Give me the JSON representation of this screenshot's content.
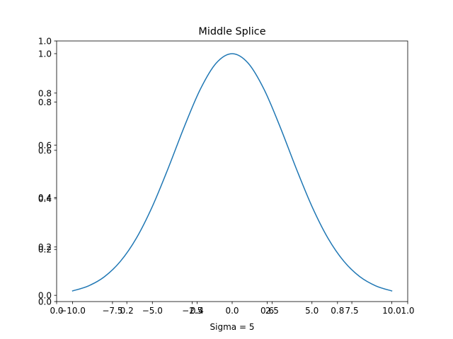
{
  "chart_data": {
    "type": "line",
    "title": "Middle Splice",
    "xlabel": "Sigma = 5",
    "ylabel": "",
    "grid": false,
    "series_color": "#1f77b4",
    "outer_axes": {
      "xlim": [
        0.0,
        1.0
      ],
      "ylim": [
        0.0,
        1.0
      ],
      "xticks": [
        "0.0",
        "0.2",
        "0.4",
        "0.6",
        "0.8",
        "1.0"
      ],
      "yticks": [
        "0.0",
        "0.2",
        "0.4",
        "0.6",
        "0.8",
        "1.0"
      ]
    },
    "inner_axes": {
      "xlim": [
        -11.0,
        11.0
      ],
      "ylim": [
        -0.0258,
        1.0525
      ],
      "xticks": [
        "−10.0",
        "−7.5",
        "−5.0",
        "−2.5",
        "0.0",
        "2.5",
        "5.0",
        "7.5",
        "10.0"
      ],
      "yticks": [
        "0.0",
        "0.2",
        "0.4",
        "0.6",
        "0.8",
        "1.0"
      ]
    },
    "series": [
      {
        "x": [
          -10,
          -9,
          -8,
          -7,
          -6,
          -5,
          -4,
          -3,
          -2,
          -1,
          0,
          1,
          2,
          3,
          4,
          5,
          6,
          7,
          8,
          9,
          10
        ],
        "values": [
          0.0183,
          0.0392,
          0.0773,
          0.1409,
          0.2369,
          0.3679,
          0.5273,
          0.6977,
          0.8521,
          0.9608,
          1.0,
          0.9608,
          0.8521,
          0.6977,
          0.5273,
          0.3679,
          0.2369,
          0.1409,
          0.0773,
          0.0392,
          0.0183
        ]
      }
    ]
  }
}
